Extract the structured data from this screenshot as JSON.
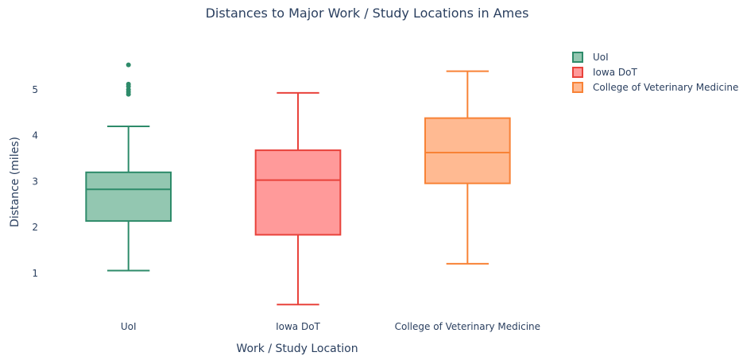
{
  "chart_data": {
    "type": "box",
    "title": "Distances to Major Work / Study Locations in Ames",
    "xlabel": "Work / Study Location",
    "ylabel": "Distance (miles)",
    "ylim": [
      0.1,
      6.0
    ],
    "yticks": [
      1,
      2,
      3,
      4,
      5
    ],
    "grid": false,
    "legend": "top-right",
    "series": [
      {
        "name": "UoI",
        "category": "UoI",
        "color": "#2e8b6a",
        "fill": "#93c7b1",
        "min": 1.06,
        "q1": 2.14,
        "median": 2.83,
        "q3": 3.2,
        "max": 4.2,
        "outliers": [
          4.9,
          4.95,
          5.0,
          5.07,
          5.12,
          5.54
        ]
      },
      {
        "name": "Iowa DoT",
        "category": "Iowa DoT",
        "color": "#e8423b",
        "fill": "#ff9a9a",
        "min": 0.32,
        "q1": 1.84,
        "median": 3.03,
        "q3": 3.68,
        "max": 4.93,
        "outliers": []
      },
      {
        "name": "College of Veterinary Medicine",
        "category": "College of Veterinary Medicine",
        "color": "#f88236",
        "fill": "#ffba92",
        "min": 1.21,
        "q1": 2.96,
        "median": 3.63,
        "q3": 4.38,
        "max": 5.4,
        "outliers": []
      }
    ]
  }
}
